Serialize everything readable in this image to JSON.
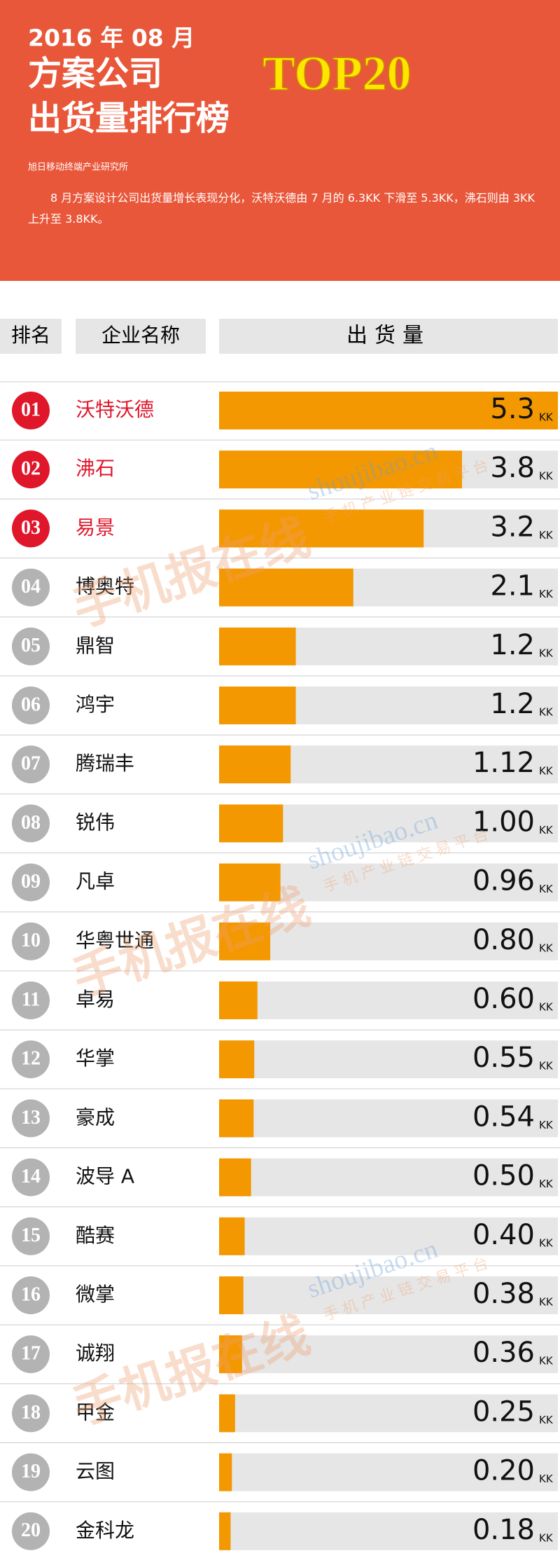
{
  "header": {
    "date": "2016 年 08 月",
    "title_line1": "方案公司",
    "title_line2": "出货量排行榜",
    "badge": "TOP20",
    "source": "旭日移动终端产业研究所",
    "description": "8 月方案设计公司出货量增长表现分化，沃特沃德由 7 月的 6.3KK 下滑至 5.3KK，沸石则由 3KK 上升至 3.8KK。"
  },
  "watermark": {
    "url": "shoujibao.cn",
    "slogan": "手机产业链交易平台",
    "brand": "手机报在线"
  },
  "chart_data": {
    "type": "bar",
    "column_headers": [
      "排名",
      "企业名称",
      "出货量"
    ],
    "ranks": [
      "01",
      "02",
      "03",
      "04",
      "05",
      "06",
      "07",
      "08",
      "09",
      "10",
      "11",
      "12",
      "13",
      "14",
      "15",
      "16",
      "17",
      "18",
      "19",
      "20"
    ],
    "categories": [
      "沃特沃德",
      "沸石",
      "易景",
      "博奥特",
      "鼎智",
      "鸿宇",
      "腾瑞丰",
      "锐伟",
      "凡卓",
      "华粤世通",
      "卓易",
      "华掌",
      "豪成",
      "波导 A",
      "酷赛",
      "微掌",
      "诚翔",
      "甲金",
      "云图",
      "金科龙"
    ],
    "values": [
      5.3,
      3.8,
      3.2,
      2.1,
      1.2,
      1.2,
      1.12,
      1,
      0.96,
      0.8,
      0.6,
      0.55,
      0.54,
      0.5,
      0.4,
      0.38,
      0.36,
      0.25,
      0.2,
      0.18
    ],
    "value_labels": [
      "5.3",
      "3.8",
      "3.2",
      "2.1",
      "1.2",
      "1.2",
      "1.12",
      "1.00",
      "0.96",
      "0.80",
      "0.60",
      "0.55",
      "0.54",
      "0.50",
      "0.40",
      "0.38",
      "0.36",
      "0.25",
      "0.20",
      "0.18"
    ],
    "unit": "KK",
    "xlim": [
      0,
      5.3
    ],
    "color": "#f39800",
    "track_color": "#e6e6e6",
    "highlight_top": 3,
    "highlight_color": "#e0162b",
    "rank_color": "#b3b3b3"
  }
}
